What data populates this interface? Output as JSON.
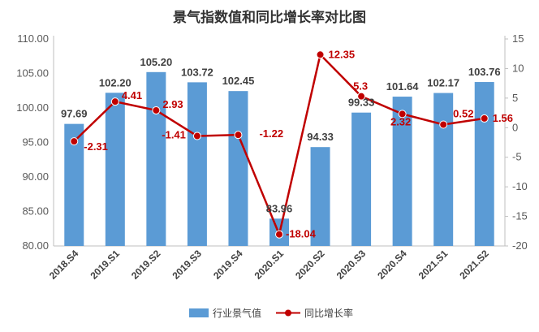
{
  "chart_data": {
    "type": "bar",
    "title": "景气指数值和同比增长率对比图",
    "categories": [
      "2018.S4",
      "2019.S1",
      "2019.S2",
      "2019.S3",
      "2019.S4",
      "2020.S1",
      "2020.S2",
      "2020.S3",
      "2020.S4",
      "2021.S1",
      "2021.S2"
    ],
    "series": [
      {
        "name": "行业景气值",
        "type": "bar",
        "axis": "left",
        "color": "#5b9bd5",
        "values": [
          97.69,
          102.2,
          105.2,
          103.72,
          102.45,
          83.96,
          94.33,
          99.33,
          101.64,
          102.17,
          103.76
        ],
        "labels": [
          "97.69",
          "102.20",
          "105.20",
          "103.72",
          "102.45",
          "83.96",
          "94.33",
          "99.33",
          "101.64",
          "102.17",
          "103.76"
        ]
      },
      {
        "name": "同比增长率",
        "type": "line",
        "axis": "right",
        "color": "#c00000",
        "values": [
          -2.31,
          4.41,
          2.93,
          -1.41,
          -1.22,
          -18.04,
          12.35,
          5.3,
          2.32,
          0.52,
          1.56
        ],
        "labels": [
          "-2.31",
          "4.41",
          "2.93",
          "-1.41",
          "-1.22",
          "-18.04",
          "12.35",
          "5.3",
          "2.32",
          "0.52",
          "1.56"
        ]
      }
    ],
    "left_axis": {
      "ylim": [
        80,
        110
      ],
      "ticks": [
        "80.00",
        "85.00",
        "90.00",
        "95.00",
        "100.00",
        "105.00",
        "110.00"
      ]
    },
    "right_axis": {
      "ylim": [
        -20,
        15
      ],
      "ticks": [
        "-20",
        "-15",
        "-10",
        "-5",
        "0",
        "5",
        "10",
        "15"
      ]
    },
    "grid": false,
    "legend_position": "bottom"
  }
}
